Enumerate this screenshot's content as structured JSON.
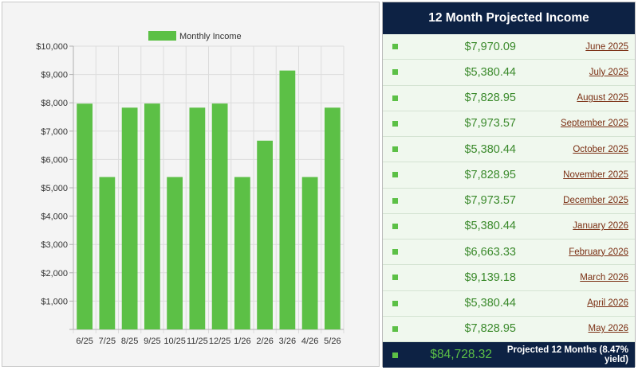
{
  "chart_data": {
    "type": "bar",
    "categories": [
      "6/25",
      "7/25",
      "8/25",
      "9/25",
      "10/25",
      "11/25",
      "12/25",
      "1/26",
      "2/26",
      "3/26",
      "4/26",
      "5/26"
    ],
    "series": [
      {
        "name": "Monthly Income",
        "values": [
          7970.09,
          5380.44,
          7828.95,
          7973.57,
          5380.44,
          7828.95,
          7973.57,
          5380.44,
          6663.33,
          9139.18,
          5380.44,
          7828.95
        ]
      }
    ],
    "yticks": [
      "$1,000",
      "$2,000",
      "$3,000",
      "$4,000",
      "$5,000",
      "$6,000",
      "$7,000",
      "$8,000",
      "$9,000",
      "$10,000"
    ],
    "ylim": [
      0,
      10000
    ],
    "legend_position": "top",
    "grid": true,
    "bar_color": "#5cc046"
  },
  "income_table": {
    "title": "12 Month Projected Income",
    "rows": [
      {
        "amount": "$7,970.09",
        "month": "June 2025"
      },
      {
        "amount": "$5,380.44",
        "month": "July 2025"
      },
      {
        "amount": "$7,828.95",
        "month": "August 2025"
      },
      {
        "amount": "$7,973.57",
        "month": "September 2025"
      },
      {
        "amount": "$5,380.44",
        "month": "October 2025"
      },
      {
        "amount": "$7,828.95",
        "month": "November 2025"
      },
      {
        "amount": "$7,973.57",
        "month": "December 2025"
      },
      {
        "amount": "$5,380.44",
        "month": "January 2026"
      },
      {
        "amount": "$6,663.33",
        "month": "February 2026"
      },
      {
        "amount": "$9,139.18",
        "month": "March 2026"
      },
      {
        "amount": "$5,380.44",
        "month": "April 2026"
      },
      {
        "amount": "$7,828.95",
        "month": "May 2026"
      }
    ],
    "total_amount": "$84,728.32",
    "total_label": "Projected 12 Months (8.47% yield)"
  },
  "colors": {
    "header_bg": "#0d2244",
    "accent_green": "#5cc046",
    "amount_green": "#3b8a2c",
    "month_link": "#7a2e12"
  }
}
